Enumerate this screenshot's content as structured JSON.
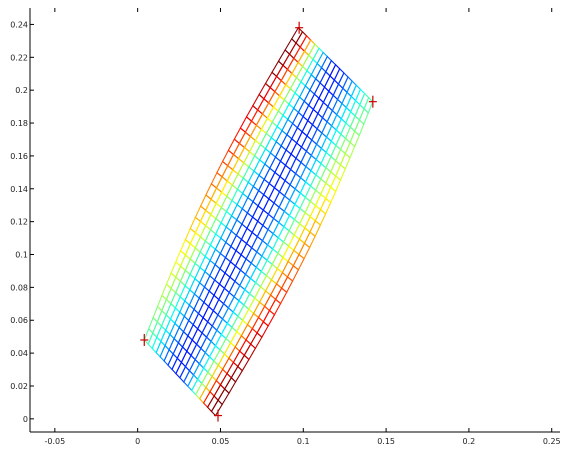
{
  "chart_data": {
    "type": "heatmap",
    "xlim": [
      -0.065,
      0.255
    ],
    "ylim": [
      -0.008,
      0.25
    ],
    "x_ticks": [
      -0.05,
      0,
      0.05,
      0.1,
      0.15,
      0.2,
      0.25
    ],
    "x_tick_labels": [
      "-0.05",
      "0",
      "0.05",
      "0.1",
      "0.15",
      "0.2",
      "0.25"
    ],
    "y_ticks": [
      0,
      0.02,
      0.04,
      0.06,
      0.08,
      0.1,
      0.12,
      0.14,
      0.16,
      0.18,
      0.2,
      0.22,
      0.24
    ],
    "y_tick_labels": [
      "0",
      "0.02",
      "0.04",
      "0.06",
      "0.08",
      "0.1",
      "0.12",
      "0.14",
      "0.16",
      "0.18",
      "0.2",
      "0.22",
      "0.24"
    ],
    "colormap": "jet",
    "mesh": {
      "corners": {
        "bottom_left": [
          0.047,
          0.002
        ],
        "bottom_right": [
          0.051,
          0.002
        ],
        "left_tip": [
          0.004,
          0.048
        ],
        "top_right": [
          0.097,
          0.238
        ],
        "right_tip": [
          0.142,
          0.193
        ]
      },
      "columns": 18,
      "rows": 28
    },
    "grid": false,
    "legend": "none"
  },
  "colors": {
    "background": "#ffffff",
    "axis": "#000000",
    "support": "#cc0000"
  }
}
